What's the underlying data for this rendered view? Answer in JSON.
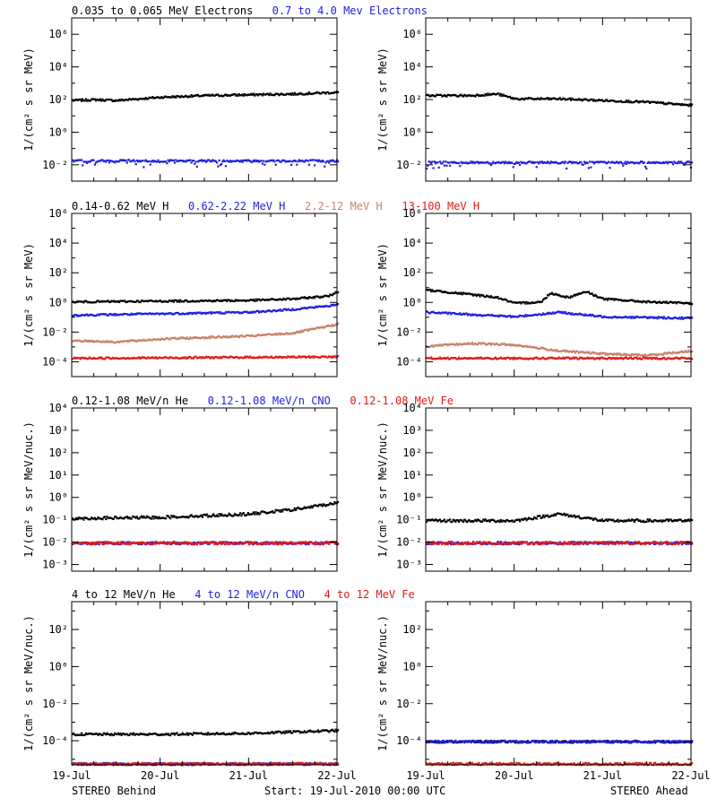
{
  "colors": {
    "black": "#000000",
    "blue": "#1f1fe0",
    "tan": "#c8826a",
    "red": "#e01a1a"
  },
  "footer": {
    "left": "STEREO Behind",
    "center": "Start: 19-Jul-2010 00:00 UTC",
    "right": "STEREO Ahead"
  },
  "x_ticks": [
    "19-Jul",
    "20-Jul",
    "21-Jul",
    "22-Jul"
  ],
  "chart_data": [
    {
      "type": "scatter",
      "ylabel": "1/(cm² s sr MeV)",
      "yscale": "log",
      "ylim_exp": [
        -3,
        7
      ],
      "yticks_exp": [
        -2,
        0,
        2,
        4,
        6
      ],
      "titles": [
        {
          "text": "0.035 to 0.065 MeV Electrons",
          "color": "black"
        },
        {
          "text": "0.7 to 4.0 Mev Electrons",
          "color": "blue"
        }
      ],
      "series": [
        {
          "name": "0.035 to 0.065 MeV Electrons",
          "color": "black",
          "sc": "behind",
          "points": [
            [
              0,
              2.0
            ],
            [
              0.25,
              2.05
            ],
            [
              0.5,
              2.0
            ],
            [
              0.75,
              2.1
            ],
            [
              1.0,
              2.2
            ],
            [
              1.5,
              2.3
            ],
            [
              2.0,
              2.35
            ],
            [
              2.5,
              2.4
            ],
            [
              3.0,
              2.5
            ]
          ]
        },
        {
          "name": "0.7 to 4.0 Mev Electrons",
          "color": "blue",
          "sc": "behind",
          "points": [
            [
              0,
              -1.7
            ],
            [
              3.0,
              -1.7
            ]
          ]
        },
        {
          "name": "0.035 to 0.065 MeV Electrons",
          "color": "black",
          "sc": "ahead",
          "points": [
            [
              0,
              2.3
            ],
            [
              0.5,
              2.3
            ],
            [
              0.8,
              2.4
            ],
            [
              1.0,
              2.1
            ],
            [
              1.5,
              2.1
            ],
            [
              2.0,
              2.0
            ],
            [
              2.5,
              1.9
            ],
            [
              3.0,
              1.7
            ]
          ]
        },
        {
          "name": "0.7 to 4.0 Mev Electrons",
          "color": "blue",
          "sc": "ahead",
          "points": [
            [
              0,
              -1.8
            ],
            [
              3.0,
              -1.8
            ]
          ]
        }
      ]
    },
    {
      "type": "scatter",
      "ylabel": "1/(cm² s sr MeV)",
      "yscale": "log",
      "ylim_exp": [
        -5,
        6
      ],
      "yticks_exp": [
        -4,
        -2,
        0,
        2,
        4,
        6
      ],
      "titles": [
        {
          "text": "0.14-0.62 MeV H",
          "color": "black"
        },
        {
          "text": "0.62-2.22 MeV H",
          "color": "blue"
        },
        {
          "text": "2.2-12 MeV H",
          "color": "tan"
        },
        {
          "text": "13-100 MeV H",
          "color": "red"
        }
      ],
      "series": [
        {
          "name": "0.14-0.62 MeV H",
          "color": "black",
          "sc": "behind",
          "points": [
            [
              0,
              0.1
            ],
            [
              1.0,
              0.15
            ],
            [
              2.0,
              0.2
            ],
            [
              2.5,
              0.3
            ],
            [
              2.9,
              0.5
            ],
            [
              3.0,
              0.8
            ]
          ]
        },
        {
          "name": "0.62-2.22 MeV H",
          "color": "blue",
          "sc": "behind",
          "points": [
            [
              0,
              -0.8
            ],
            [
              1.0,
              -0.7
            ],
            [
              2.0,
              -0.6
            ],
            [
              2.5,
              -0.4
            ],
            [
              3.0,
              -0.1
            ]
          ]
        },
        {
          "name": "2.2-12 MeV H",
          "color": "tan",
          "sc": "behind",
          "points": [
            [
              0,
              -2.5
            ],
            [
              0.5,
              -2.6
            ],
            [
              1.0,
              -2.4
            ],
            [
              2.0,
              -2.2
            ],
            [
              2.5,
              -2.0
            ],
            [
              3.0,
              -1.4
            ]
          ]
        },
        {
          "name": "13-100 MeV H",
          "color": "red",
          "sc": "behind",
          "points": [
            [
              0,
              -3.7
            ],
            [
              3.0,
              -3.6
            ]
          ]
        },
        {
          "name": "0.14-0.62 MeV H",
          "color": "black",
          "sc": "ahead",
          "points": [
            [
              0,
              0.9
            ],
            [
              0.5,
              0.6
            ],
            [
              0.8,
              0.4
            ],
            [
              1.0,
              0.0
            ],
            [
              1.3,
              0.1
            ],
            [
              1.4,
              0.7
            ],
            [
              1.6,
              0.4
            ],
            [
              1.8,
              0.8
            ],
            [
              2.0,
              0.3
            ],
            [
              2.5,
              0.1
            ],
            [
              3.0,
              0.0
            ]
          ]
        },
        {
          "name": "0.62-2.22 MeV H",
          "color": "blue",
          "sc": "ahead",
          "points": [
            [
              0,
              -0.6
            ],
            [
              1.0,
              -0.9
            ],
            [
              1.5,
              -0.6
            ],
            [
              2.0,
              -0.9
            ],
            [
              3.0,
              -1.0
            ]
          ]
        },
        {
          "name": "2.2-12 MeV H",
          "color": "tan",
          "sc": "ahead",
          "points": [
            [
              0,
              -2.9
            ],
            [
              0.5,
              -2.7
            ],
            [
              1.0,
              -2.8
            ],
            [
              1.5,
              -3.2
            ],
            [
              2.0,
              -3.4
            ],
            [
              2.5,
              -3.5
            ],
            [
              3.0,
              -3.2
            ]
          ]
        },
        {
          "name": "13-100 MeV H",
          "color": "red",
          "sc": "ahead",
          "points": [
            [
              0,
              -3.7
            ],
            [
              3.0,
              -3.7
            ]
          ]
        }
      ]
    },
    {
      "type": "scatter",
      "ylabel": "1/(cm² s sr MeV/nuc.)",
      "yscale": "log",
      "ylim_exp": [
        -3.3,
        4
      ],
      "yticks_exp": [
        -3,
        -2,
        -1,
        0,
        1,
        2,
        3,
        4
      ],
      "titles": [
        {
          "text": "0.12-1.08 MeV/n He",
          "color": "black"
        },
        {
          "text": "0.12-1.08 MeV/n CNO",
          "color": "blue"
        },
        {
          "text": "0.12-1.08 MeV Fe",
          "color": "red"
        }
      ],
      "series": [
        {
          "name": "0.12-1.08 MeV/n He",
          "color": "black",
          "sc": "behind",
          "points": [
            [
              0,
              -0.9
            ],
            [
              1.0,
              -0.85
            ],
            [
              2.0,
              -0.7
            ],
            [
              2.5,
              -0.5
            ],
            [
              3.0,
              -0.2
            ]
          ]
        },
        {
          "name": "0.12-1.08 MeV/n CNO",
          "color": "blue",
          "sc": "behind",
          "points": [
            [
              0,
              -2.0
            ],
            [
              3.0,
              -2.0
            ]
          ]
        },
        {
          "name": "0.12-1.08 MeV Fe",
          "color": "red",
          "sc": "behind",
          "points": [
            [
              0,
              -2.0
            ],
            [
              3.0,
              -2.0
            ]
          ]
        },
        {
          "name": "0.12-1.08 MeV/n He",
          "color": "black",
          "sc": "ahead",
          "points": [
            [
              0,
              -1.0
            ],
            [
              1.0,
              -1.0
            ],
            [
              1.5,
              -0.7
            ],
            [
              2.0,
              -1.0
            ],
            [
              3.0,
              -1.0
            ]
          ]
        },
        {
          "name": "0.12-1.08 MeV/n CNO",
          "color": "blue",
          "sc": "ahead",
          "points": [
            [
              0,
              -2.0
            ],
            [
              3.0,
              -2.0
            ]
          ]
        },
        {
          "name": "0.12-1.08 MeV Fe",
          "color": "red",
          "sc": "ahead",
          "points": [
            [
              0,
              -2.0
            ],
            [
              3.0,
              -2.0
            ]
          ]
        }
      ]
    },
    {
      "type": "scatter",
      "ylabel": "1/(cm² s sr MeV/nuc.)",
      "yscale": "log",
      "ylim_exp": [
        -5.3,
        3.5
      ],
      "yticks_exp": [
        -4,
        -2,
        0,
        2
      ],
      "titles": [
        {
          "text": "4 to 12 MeV/n He",
          "color": "black"
        },
        {
          "text": "4 to 12 MeV/n CNO",
          "color": "blue"
        },
        {
          "text": "4 to 12 MeV Fe",
          "color": "red"
        }
      ],
      "series": [
        {
          "name": "4 to 12 MeV/n He",
          "color": "black",
          "sc": "behind",
          "points": [
            [
              0,
              -3.6
            ],
            [
              1.0,
              -3.6
            ],
            [
              2.0,
              -3.55
            ],
            [
              3.0,
              -3.4
            ]
          ]
        },
        {
          "name": "4 to 12 MeV/n CNO",
          "color": "blue",
          "sc": "behind",
          "points": [
            [
              0,
              -5.2
            ],
            [
              3.0,
              -5.2
            ]
          ]
        },
        {
          "name": "4 to 12 MeV Fe",
          "color": "red",
          "sc": "behind",
          "points": [
            [
              0,
              -5.2
            ],
            [
              3.0,
              -5.2
            ]
          ]
        },
        {
          "name": "4 to 12 MeV/n He",
          "color": "black",
          "sc": "ahead",
          "points": [
            [
              0,
              -4.0
            ],
            [
              3.0,
              -4.0
            ]
          ]
        },
        {
          "name": "4 to 12 MeV/n CNO",
          "color": "blue",
          "sc": "ahead",
          "points": [
            [
              0,
              -4.0
            ],
            [
              3.0,
              -4.0
            ]
          ]
        },
        {
          "name": "4 to 12 MeV Fe",
          "color": "red",
          "sc": "ahead",
          "points": [
            [
              0,
              -5.2
            ],
            [
              3.0,
              -5.2
            ]
          ]
        }
      ]
    }
  ]
}
